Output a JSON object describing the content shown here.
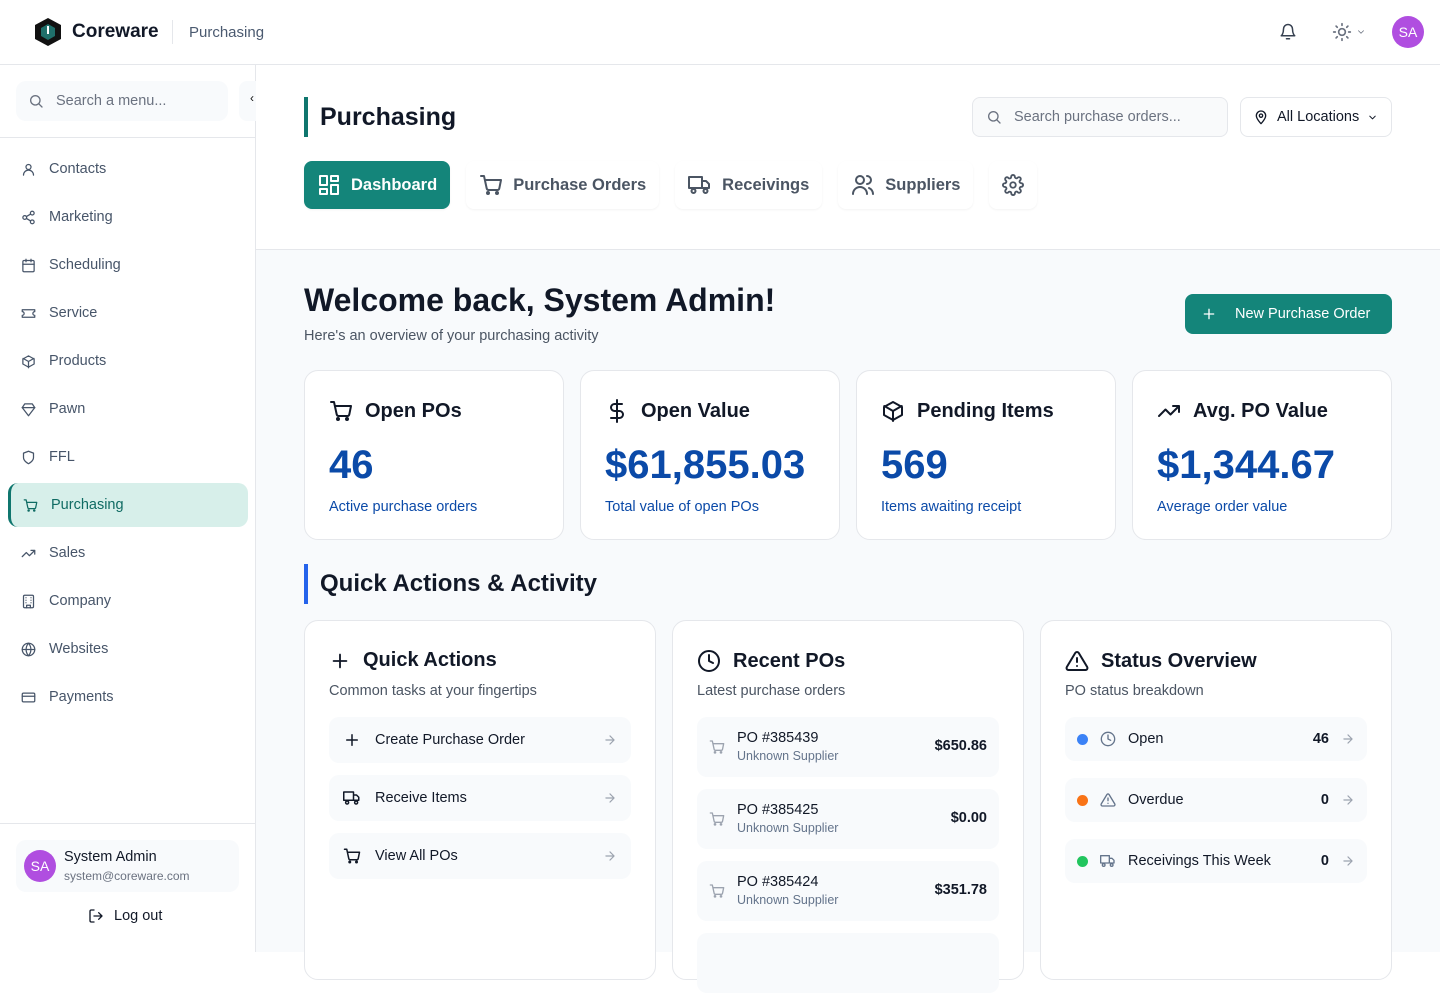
{
  "app": {
    "brand": "Coreware",
    "breadcrumb": "Purchasing",
    "avatar_initials": "SA"
  },
  "sidebar": {
    "search_placeholder": "Search a menu...",
    "collapse_glyph": "‹",
    "items": [
      {
        "label": "Contacts",
        "icon": "user"
      },
      {
        "label": "Marketing",
        "icon": "share"
      },
      {
        "label": "Scheduling",
        "icon": "calendar"
      },
      {
        "label": "Service",
        "icon": "ticket"
      },
      {
        "label": "Products",
        "icon": "box"
      },
      {
        "label": "Pawn",
        "icon": "gem"
      },
      {
        "label": "FFL",
        "icon": "shield"
      },
      {
        "label": "Purchasing",
        "icon": "cart",
        "active": true
      },
      {
        "label": "Sales",
        "icon": "trending-up"
      },
      {
        "label": "Company",
        "icon": "building"
      },
      {
        "label": "Websites",
        "icon": "globe"
      },
      {
        "label": "Payments",
        "icon": "credit-card"
      }
    ],
    "user": {
      "initials": "SA",
      "name": "System Admin",
      "email": "system@coreware.com"
    },
    "logout": "Log out"
  },
  "header": {
    "title": "Purchasing",
    "search_placeholder": "Search purchase orders...",
    "location": "All Locations",
    "tabs": [
      {
        "label": "Dashboard",
        "active": true
      },
      {
        "label": "Purchase Orders"
      },
      {
        "label": "Receivings"
      },
      {
        "label": "Suppliers"
      }
    ]
  },
  "main": {
    "welcome": "Welcome back, System Admin!",
    "subtitle": "Here's an overview of your purchasing activity",
    "new_po": "New Purchase Order",
    "stats": [
      {
        "title": "Open POs",
        "value": "46",
        "sub": "Active purchase orders"
      },
      {
        "title": "Open Value",
        "value": "$61,855.03",
        "sub": "Total value of open POs"
      },
      {
        "title": "Pending Items",
        "value": "569",
        "sub": "Items awaiting receipt"
      },
      {
        "title": "Avg. PO Value",
        "value": "$1,344.67",
        "sub": "Average order value"
      }
    ],
    "section": "Quick Actions & Activity",
    "quick": {
      "title": "Quick Actions",
      "sub": "Common tasks at your fingertips",
      "items": [
        "Create Purchase Order",
        "Receive Items",
        "View All POs"
      ]
    },
    "recent": {
      "title": "Recent POs",
      "sub": "Latest purchase orders",
      "items": [
        {
          "po": "PO #385439",
          "supplier": "Unknown Supplier",
          "amount": "$650.86"
        },
        {
          "po": "PO #385425",
          "supplier": "Unknown Supplier",
          "amount": "$0.00"
        },
        {
          "po": "PO #385424",
          "supplier": "Unknown Supplier",
          "amount": "$351.78"
        }
      ]
    },
    "status": {
      "title": "Status Overview",
      "sub": "PO status breakdown",
      "items": [
        {
          "label": "Open",
          "count": "46",
          "color": "#3b82f6"
        },
        {
          "label": "Overdue",
          "count": "0",
          "color": "#f97316"
        },
        {
          "label": "Receivings This Week",
          "count": "0",
          "color": "#22c55e"
        }
      ]
    }
  },
  "colors": {
    "accent": "#14857a",
    "value_blue": "#0b4aa8",
    "section_bar": "#2563eb"
  }
}
